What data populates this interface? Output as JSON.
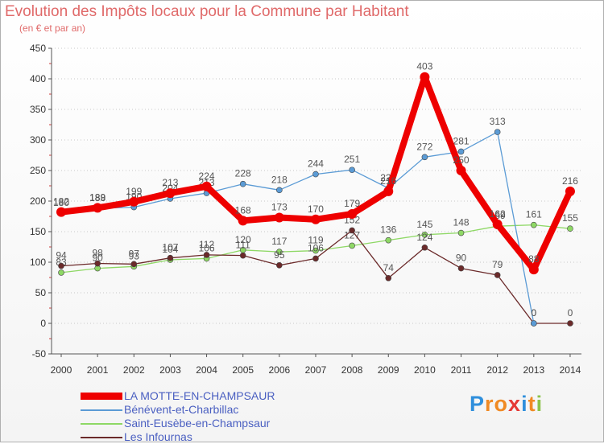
{
  "header": {
    "title": "Evolution des Impôts locaux pour la Commune par Habitant",
    "subtitle": "(en € et par an)"
  },
  "logo": {
    "text": "Proxiti",
    "colors": [
      "#2f8fdc",
      "#f08a24",
      "#f08a24",
      "#e53935",
      "#2f8fdc",
      "#f08a24",
      "#8bc34a"
    ]
  },
  "chart_data": {
    "type": "line",
    "title": "Evolution des Impôts locaux pour la Commune par Habitant",
    "subtitle": "(en € et par an)",
    "xlabel": "",
    "ylabel": "",
    "ylim": [
      -50,
      450
    ],
    "yticks": [
      -50,
      0,
      50,
      100,
      150,
      200,
      250,
      300,
      350,
      400,
      450
    ],
    "grid": "horizontal dotted",
    "legend_position": "bottom-left",
    "x": [
      "2000",
      "2001",
      "2002",
      "2003",
      "2004",
      "2005",
      "2006",
      "2007",
      "2008",
      "2009",
      "2010",
      "2011",
      "2012",
      "2013",
      "2014"
    ],
    "series": [
      {
        "name": "Saint-Eusèbe-en-Champsaur",
        "color": "#8ed865",
        "values": [
          83,
          90,
          93,
          104,
          106,
          120,
          117,
          119,
          127,
          136,
          145,
          148,
          159,
          161,
          155
        ],
        "labels": [
          "83",
          "90",
          "93",
          "104",
          "106",
          "120",
          "117",
          "119",
          "127",
          "136",
          "145",
          "148",
          "159",
          "161",
          "155"
        ]
      },
      {
        "name": "Les Infournas",
        "color": "#6b2a2a",
        "values": [
          94,
          98,
          97,
          107,
          112,
          111,
          95,
          106,
          152,
          74,
          124,
          90,
          79,
          0,
          0
        ],
        "labels": [
          "94",
          "98",
          "97",
          "107",
          "112",
          "111",
          "95",
          "106",
          "152",
          "74",
          "124",
          "90",
          "79",
          "0",
          "0"
        ]
      },
      {
        "name": "Bénévent-et-Charbillac",
        "color": "#5b9bd5",
        "values": [
          180,
          188,
          190,
          204,
          213,
          228,
          218,
          244,
          251,
          221,
          272,
          281,
          313,
          0,
          null
        ],
        "labels": [
          "180",
          "188",
          "190",
          "204",
          "213",
          "228",
          "218",
          "244",
          "251",
          "221",
          "272",
          "281",
          "313",
          "0",
          ""
        ]
      },
      {
        "name": "LA MOTTE-EN-CHAMPSAUR",
        "color": "#ee0000",
        "values": [
          182,
          189,
          199,
          213,
          224,
          168,
          173,
          170,
          179,
          216,
          403,
          250,
          162,
          88,
          216
        ],
        "labels": [
          "182",
          "189",
          "199",
          "213",
          "224",
          "168",
          "173",
          "170",
          "179",
          "216",
          "403",
          "250",
          "162",
          "88",
          "216"
        ]
      }
    ],
    "legend": [
      {
        "name": "LA MOTTE-EN-CHAMPSAUR",
        "color": "#ee0000"
      },
      {
        "name": "Bénévent-et-Charbillac",
        "color": "#5b9bd5"
      },
      {
        "name": "Saint-Eusèbe-en-Champsaur",
        "color": "#8ed865"
      },
      {
        "name": "Les Infournas",
        "color": "#6b2a2a"
      }
    ]
  }
}
